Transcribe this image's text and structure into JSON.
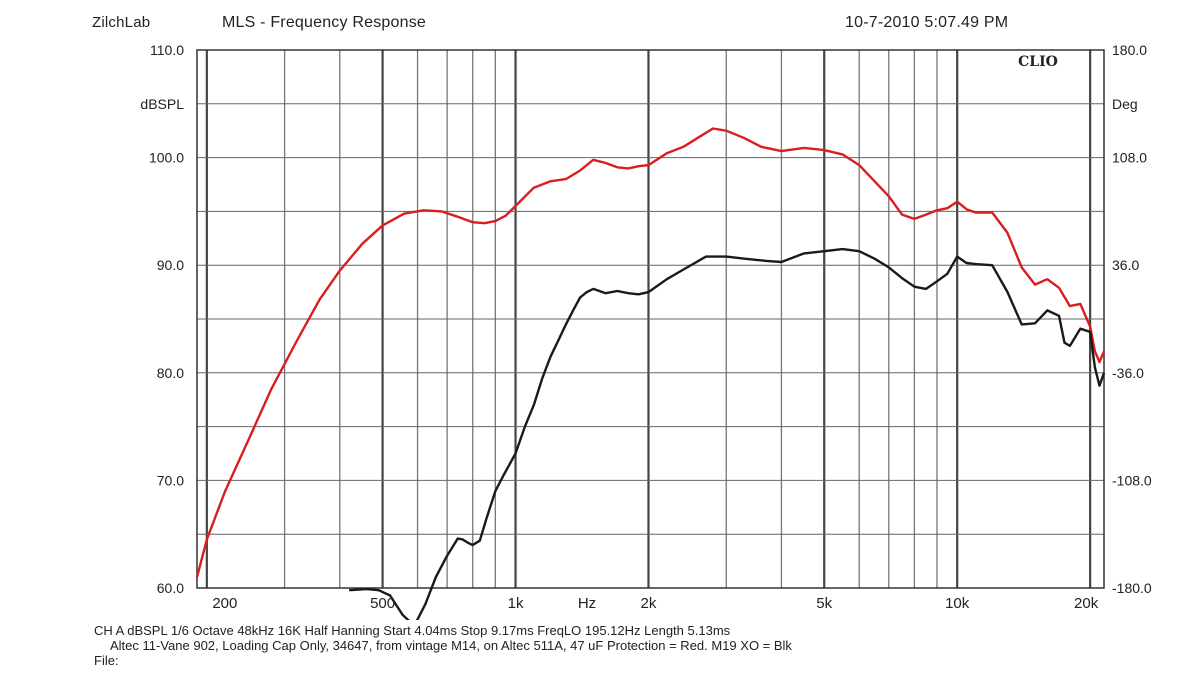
{
  "header": {
    "app_name": "ZilchLab",
    "title": "MLS - Frequency Response",
    "timestamp": "10-7-2010 5:07.49 PM"
  },
  "footer": {
    "settings_line": "CH A   dBSPL   1/6 Octave   48kHz   16K   Half Hanning   Start 4.04ms    Stop 9.17ms    FreqLO 195.12Hz    Length 5.13ms",
    "description_line": "Altec 11-Vane 902, Loading Cap Only, 34647, from vintage M14, on Altec 511A, 47 uF Protection = Red.  M19 XO = Blk",
    "file_label": "File:"
  },
  "chart_data": {
    "type": "line",
    "title": "MLS - Frequency Response",
    "xlabel": "Hz",
    "ylabel": "dBSPL",
    "y2label": "Deg",
    "x_scale": "log",
    "xlim": [
      190,
      21500
    ],
    "ylim": [
      60,
      110
    ],
    "y2lim": [
      -180,
      180
    ],
    "logo": "CLIO",
    "x_ticks": [
      {
        "value": 200,
        "label": "200"
      },
      {
        "value": 500,
        "label": "500"
      },
      {
        "value": 1000,
        "label": "1k"
      },
      {
        "value": 2000,
        "label": "2k"
      },
      {
        "value": 5000,
        "label": "5k"
      },
      {
        "value": 10000,
        "label": "10k"
      },
      {
        "value": 20000,
        "label": "20k"
      }
    ],
    "y_ticks": [
      {
        "value": 60,
        "label": "60.0"
      },
      {
        "value": 70,
        "label": "70.0"
      },
      {
        "value": 80,
        "label": "80.0"
      },
      {
        "value": 90,
        "label": "90.0"
      },
      {
        "value": 100,
        "label": "100.0"
      },
      {
        "value": 110,
        "label": "110.0"
      }
    ],
    "y2_ticks": [
      {
        "value": -180,
        "label": "-180.0"
      },
      {
        "value": -108,
        "label": "-108.0"
      },
      {
        "value": -36,
        "label": "-36.0"
      },
      {
        "value": 36,
        "label": "36.0"
      },
      {
        "value": 108,
        "label": "108.0"
      },
      {
        "value": 180,
        "label": "180.0"
      }
    ],
    "grid": true,
    "series": [
      {
        "color": "#d81e1e",
        "x": [
          190,
          200,
          220,
          250,
          280,
          320,
          360,
          400,
          450,
          500,
          560,
          620,
          680,
          740,
          800,
          850,
          900,
          950,
          1000,
          1100,
          1200,
          1300,
          1400,
          1500,
          1600,
          1700,
          1800,
          1900,
          2000,
          2200,
          2400,
          2600,
          2800,
          3000,
          3300,
          3600,
          4000,
          4500,
          5000,
          5500,
          6000,
          6500,
          7000,
          7500,
          8000,
          8500,
          9000,
          9500,
          10000,
          10500,
          11000,
          12000,
          13000,
          14000,
          15000,
          16000,
          17000,
          18000,
          19000,
          20000,
          20500,
          21000,
          21500
        ],
        "y": [
          61.0,
          64.5,
          69.0,
          74.0,
          78.5,
          83.0,
          86.8,
          89.5,
          92.0,
          93.7,
          94.8,
          95.1,
          95.0,
          94.5,
          94.0,
          93.9,
          94.1,
          94.6,
          95.5,
          97.2,
          97.8,
          98.0,
          98.8,
          99.8,
          99.5,
          99.1,
          99.0,
          99.2,
          99.3,
          100.4,
          101.0,
          101.9,
          102.7,
          102.5,
          101.8,
          101.0,
          100.6,
          100.9,
          100.7,
          100.3,
          99.3,
          97.8,
          96.4,
          94.7,
          94.3,
          94.7,
          95.1,
          95.3,
          95.9,
          95.2,
          94.9,
          94.9,
          93.0,
          89.8,
          88.2,
          88.7,
          87.9,
          86.2,
          86.4,
          84.3,
          82.0,
          81.0,
          82.0
        ]
      },
      {
        "color": "#1a1a1a",
        "x": [
          420,
          460,
          490,
          520,
          555,
          590,
          625,
          660,
          700,
          740,
          760,
          780,
          800,
          830,
          860,
          900,
          940,
          1000,
          1050,
          1100,
          1150,
          1200,
          1250,
          1300,
          1350,
          1400,
          1450,
          1500,
          1600,
          1700,
          1800,
          1900,
          2000,
          2200,
          2400,
          2700,
          3000,
          3300,
          3700,
          4000,
          4500,
          5000,
          5500,
          6000,
          6500,
          7000,
          7500,
          8000,
          8500,
          9000,
          9500,
          10000,
          10500,
          11000,
          12000,
          13000,
          14000,
          15000,
          16000,
          17000,
          17500,
          18000,
          19000,
          20000,
          20500,
          21000,
          21500
        ],
        "y": [
          59.8,
          59.9,
          59.8,
          59.3,
          57.5,
          56.5,
          58.5,
          61.0,
          63.0,
          64.6,
          64.5,
          64.2,
          64.0,
          64.4,
          66.5,
          69.0,
          70.5,
          72.5,
          75.0,
          77.0,
          79.5,
          81.5,
          83.0,
          84.5,
          85.8,
          87.0,
          87.5,
          87.8,
          87.4,
          87.6,
          87.4,
          87.3,
          87.5,
          88.7,
          89.6,
          90.8,
          90.8,
          90.6,
          90.4,
          90.3,
          91.1,
          91.3,
          91.5,
          91.3,
          90.6,
          89.8,
          88.8,
          88.0,
          87.8,
          88.5,
          89.2,
          90.8,
          90.2,
          90.1,
          90.0,
          87.5,
          84.5,
          84.6,
          85.8,
          85.3,
          82.8,
          82.5,
          84.1,
          83.8,
          80.5,
          78.8,
          80.0
        ]
      }
    ]
  }
}
